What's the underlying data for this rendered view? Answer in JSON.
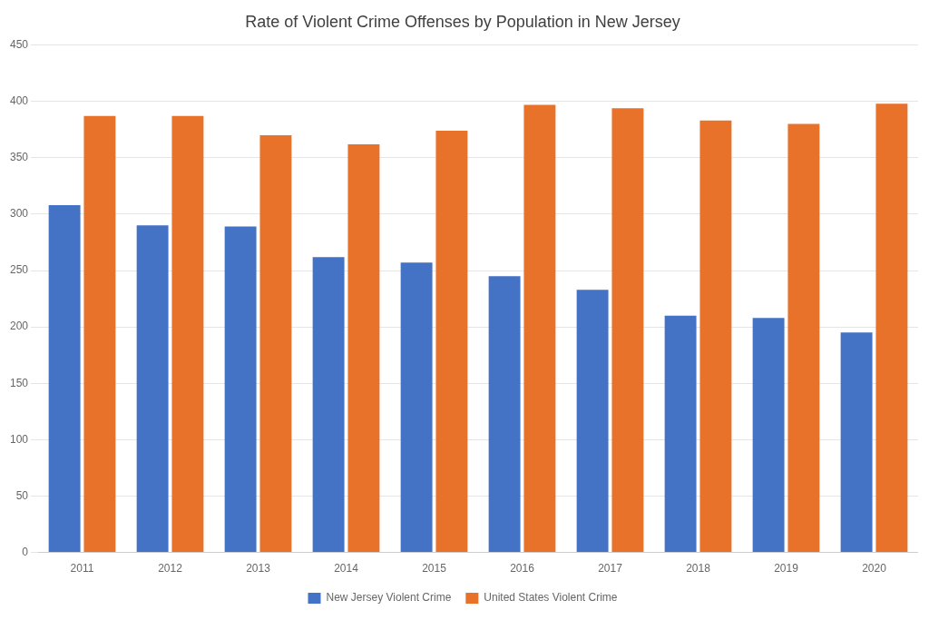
{
  "chart_data": {
    "type": "bar",
    "title": "Rate of Violent Crime Offenses by Population in New Jersey",
    "categories": [
      "2011",
      "2012",
      "2013",
      "2014",
      "2015",
      "2016",
      "2017",
      "2018",
      "2019",
      "2020"
    ],
    "series": [
      {
        "name": "New Jersey Violent Crime",
        "color": "#4472C4",
        "values": [
          308,
          290,
          289,
          262,
          257,
          245,
          233,
          210,
          208,
          195
        ]
      },
      {
        "name": "United States Violent Crime",
        "color": "#E8722A",
        "values": [
          387,
          387,
          370,
          362,
          374,
          397,
          394,
          383,
          380,
          398
        ]
      }
    ],
    "ylim": [
      0,
      450
    ],
    "yticks": [
      0,
      50,
      100,
      150,
      200,
      250,
      300,
      350,
      400,
      450
    ],
    "grid": true,
    "legend": "bottom"
  }
}
